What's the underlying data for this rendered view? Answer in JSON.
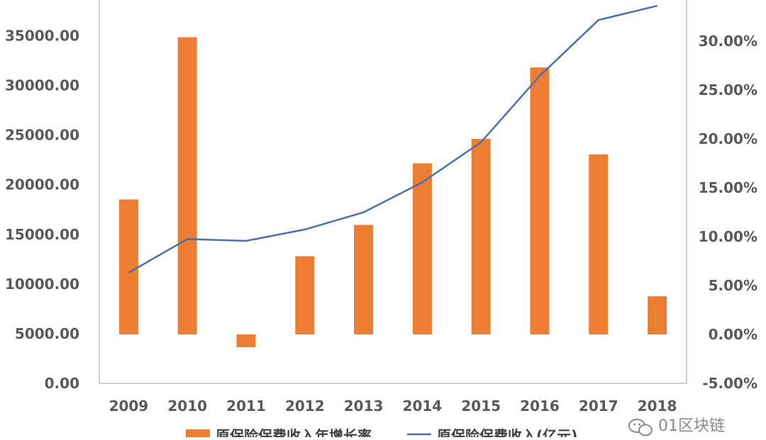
{
  "chart_data": {
    "type": "bar+line",
    "categories": [
      "2009",
      "2010",
      "2011",
      "2012",
      "2013",
      "2014",
      "2015",
      "2016",
      "2017",
      "2018"
    ],
    "series": [
      {
        "name": "原保险保费收入年增长率",
        "kind": "bar",
        "axis": "right",
        "values": [
          13.8,
          30.4,
          -1.3,
          8.0,
          11.2,
          17.5,
          20.0,
          27.3,
          18.4,
          3.9
        ],
        "color": "#ED7D31"
      },
      {
        "name": "原保险保费收入(亿元)",
        "kind": "line",
        "axis": "left",
        "values": [
          11137,
          14528,
          14339,
          15488,
          17222,
          20235,
          24283,
          30959,
          36581,
          38017
        ],
        "color": "#4F6FA8"
      }
    ],
    "y_left": {
      "ylim": [
        0,
        35000
      ],
      "ticks": [
        "0.00",
        "5000.00",
        "10000.00",
        "15000.00",
        "20000.00",
        "25000.00",
        "30000.00",
        "35000.00"
      ]
    },
    "y_right": {
      "ylim": [
        -5,
        30
      ],
      "ticks": [
        "-5.00%",
        "0.00%",
        "5.00%",
        "10.00%",
        "15.00%",
        "20.00%",
        "25.00%",
        "30.00%"
      ]
    },
    "grid": false,
    "legend_position": "bottom"
  },
  "legend": {
    "bar_label": "原保险保费收入年增长率",
    "line_label": "原保险保费收入(亿元)"
  },
  "watermark": {
    "text": "01区块链",
    "icon": "wechat-icon"
  }
}
